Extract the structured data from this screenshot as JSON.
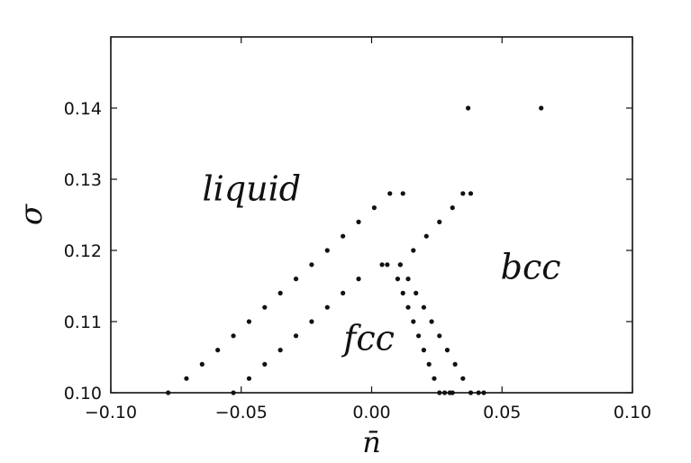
{
  "chart_data": {
    "type": "scatter",
    "xlabel": "n̄",
    "ylabel": "σ",
    "xlim": [
      -0.1,
      0.1
    ],
    "ylim": [
      0.1,
      0.15
    ],
    "xticks": [
      -0.1,
      -0.05,
      0.0,
      0.05,
      0.1
    ],
    "xtick_labels": [
      "−0.10",
      "−0.05",
      "0.00",
      "0.05",
      "0.10"
    ],
    "yticks": [
      0.1,
      0.11,
      0.12,
      0.13,
      0.14
    ],
    "ytick_labels": [
      "0.10",
      "0.11",
      "0.12",
      "0.13",
      "0.14"
    ],
    "grid": false,
    "series": [
      {
        "x": [
          -0.078,
          -0.071,
          -0.065,
          -0.059,
          -0.053,
          -0.047,
          -0.041,
          -0.035,
          -0.029,
          -0.023,
          -0.017,
          -0.011,
          -0.005,
          0.001,
          0.007,
          0.012,
          -0.053,
          -0.047,
          -0.041,
          -0.035,
          -0.029,
          -0.023,
          -0.017,
          -0.011,
          -0.005,
          0.004,
          0.006,
          0.01,
          0.012,
          0.014,
          0.016,
          0.018,
          0.02,
          0.022,
          0.024,
          0.026,
          0.028,
          0.03,
          0.031,
          0.011,
          0.014,
          0.017,
          0.02,
          0.023,
          0.026,
          0.029,
          0.032,
          0.035,
          0.038,
          0.041,
          0.043,
          0.011,
          0.016,
          0.021,
          0.026,
          0.031,
          0.035,
          0.038,
          0.037,
          0.065
        ],
        "y": [
          0.1,
          0.102,
          0.104,
          0.106,
          0.108,
          0.11,
          0.112,
          0.114,
          0.116,
          0.118,
          0.12,
          0.122,
          0.124,
          0.126,
          0.128,
          0.128,
          0.1,
          0.102,
          0.104,
          0.106,
          0.108,
          0.11,
          0.112,
          0.114,
          0.116,
          0.118,
          0.118,
          0.116,
          0.114,
          0.112,
          0.11,
          0.108,
          0.106,
          0.104,
          0.102,
          0.1,
          0.1,
          0.1,
          0.1,
          0.118,
          0.116,
          0.114,
          0.112,
          0.11,
          0.108,
          0.106,
          0.104,
          0.102,
          0.1,
          0.1,
          0.1,
          0.118,
          0.12,
          0.122,
          0.124,
          0.126,
          0.128,
          0.128,
          0.14,
          0.14
        ]
      }
    ],
    "annotations": [
      {
        "text": "liquid",
        "x": -0.046,
        "y": 0.127
      },
      {
        "text": "fcc",
        "x": -0.001,
        "y": 0.106
      },
      {
        "text": "bcc",
        "x": 0.061,
        "y": 0.116
      }
    ]
  }
}
